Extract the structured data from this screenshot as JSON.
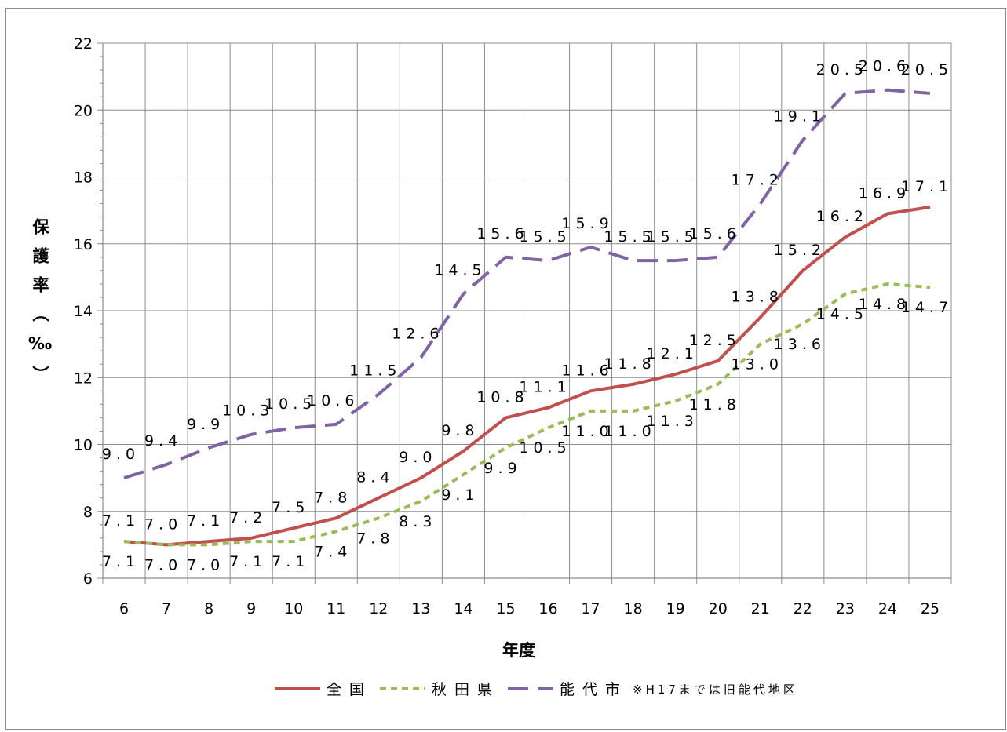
{
  "chart_data": {
    "type": "line",
    "categories": [
      "6",
      "7",
      "8",
      "9",
      "10",
      "11",
      "12",
      "13",
      "14",
      "15",
      "16",
      "17",
      "18",
      "19",
      "20",
      "21",
      "22",
      "23",
      "24",
      "25"
    ],
    "xlabel": "年度",
    "ylabel": "保護率（‰）",
    "ylim": [
      6,
      22
    ],
    "yticks": [
      "6",
      "8",
      "10",
      "12",
      "14",
      "16",
      "18",
      "20",
      "22"
    ],
    "grid": true,
    "legend_position": "bottom",
    "legend_note": "※H17までは旧能代地区",
    "series": [
      {
        "name": "全国",
        "color": "#c0504d",
        "dash": "solid",
        "values": [
          7.1,
          7.0,
          7.1,
          7.2,
          7.5,
          7.8,
          8.4,
          9.0,
          9.8,
          10.8,
          11.1,
          11.6,
          11.8,
          12.1,
          12.5,
          13.8,
          15.2,
          16.2,
          16.9,
          17.1
        ],
        "labels": [
          "7.1",
          "7.0",
          "7.1",
          "7.2",
          "7.5",
          "7.8",
          "8.4",
          "9.0",
          "9.8",
          "10.8",
          "11.1",
          "11.6",
          "11.8",
          "12.1",
          "12.5",
          "13.8",
          "15.2",
          "16.2",
          "16.9",
          "17.1"
        ]
      },
      {
        "name": "秋田県",
        "color": "#9bbb59",
        "dash": "short",
        "values": [
          7.1,
          7.0,
          7.0,
          7.1,
          7.1,
          7.4,
          7.8,
          8.3,
          9.1,
          9.9,
          10.5,
          11.0,
          11.0,
          11.3,
          11.8,
          13.0,
          13.6,
          14.5,
          14.8,
          14.7
        ],
        "labels": [
          "7.1",
          "7.0",
          "7.0",
          "7.1",
          "7.1",
          "7.4",
          "7.8",
          "8.3",
          "9.1",
          "9.9",
          "10.5",
          "11.0",
          "11.0",
          "11.3",
          "11.8",
          "13.0",
          "13.6",
          "14.5",
          "14.8",
          "14.7"
        ]
      },
      {
        "name": "能代市",
        "color": "#8064a2",
        "dash": "long",
        "values": [
          9.0,
          9.4,
          9.9,
          10.3,
          10.5,
          10.6,
          11.5,
          12.6,
          14.5,
          15.6,
          15.5,
          15.9,
          15.5,
          15.5,
          15.6,
          17.2,
          19.1,
          20.5,
          20.6,
          20.5
        ],
        "labels": [
          "9.0",
          "9.4",
          "9.9",
          "10.3",
          "10.5",
          "10.6",
          "11.5",
          "12.6",
          "14.5",
          "15.6",
          "15.5",
          "15.9",
          "15.5",
          "15.5",
          "15.6",
          "17.2",
          "19.1",
          "20.5",
          "20.6",
          "20.5"
        ]
      }
    ]
  }
}
